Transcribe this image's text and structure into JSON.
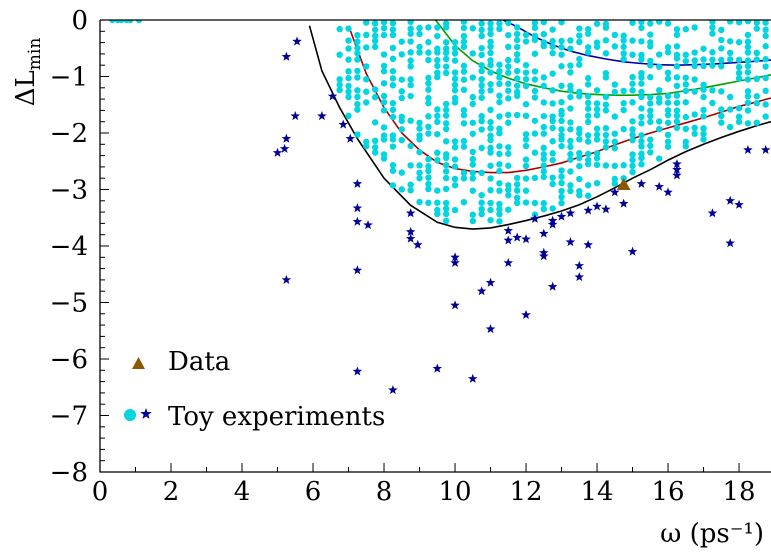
{
  "chart_data": {
    "type": "scatter",
    "title": "",
    "xlabel": "ω (ps⁻¹)",
    "ylabel": "ΔL_min",
    "ylabel_main": "ΔL",
    "ylabel_sub": "min",
    "xlim": [
      0,
      18.9
    ],
    "ylim": [
      -8,
      0
    ],
    "x_ticks": [
      0,
      2,
      4,
      6,
      8,
      10,
      12,
      14,
      16,
      18
    ],
    "x_tick_labels": [
      "0",
      "2",
      "4",
      "6",
      "8",
      "10",
      "12",
      "14",
      "16",
      "18"
    ],
    "y_ticks": [
      0,
      -1,
      -2,
      -3,
      -4,
      -5,
      -6,
      -7,
      -8
    ],
    "y_tick_labels": [
      "0",
      "−1",
      "−2",
      "−3",
      "−4",
      "−5",
      "−6",
      "−7",
      "−8"
    ],
    "grid": false,
    "legend_position": "bottom-left",
    "legend": [
      {
        "label": "Data",
        "marker": "triangle",
        "color": "#8b5a00"
      },
      {
        "label": "Toy experiments",
        "marker": "circle+star",
        "color": "#00d5e0"
      }
    ],
    "series": [
      {
        "name": "Data",
        "kind": "point",
        "color": "#8b5a00",
        "marker": "triangle",
        "points": [
          [
            14.75,
            -2.92
          ]
        ]
      },
      {
        "name": "Toy experiments (stars)",
        "kind": "scatter",
        "color": "#000099",
        "marker": "star",
        "points": [
          [
            5.0,
            -2.35
          ],
          [
            5.2,
            -2.28
          ],
          [
            5.25,
            -2.1
          ],
          [
            5.25,
            -0.65
          ],
          [
            5.55,
            -0.38
          ],
          [
            5.25,
            -4.6
          ],
          [
            5.5,
            -1.7
          ],
          [
            6.25,
            -1.7
          ],
          [
            6.55,
            -1.35
          ],
          [
            6.85,
            -1.85
          ],
          [
            7.05,
            -2.1
          ],
          [
            7.25,
            -2.9
          ],
          [
            7.25,
            -3.33
          ],
          [
            7.25,
            -3.57
          ],
          [
            7.55,
            -3.63
          ],
          [
            7.25,
            -4.43
          ],
          [
            7.25,
            -6.22
          ],
          [
            8.75,
            -3.42
          ],
          [
            8.75,
            -3.75
          ],
          [
            8.75,
            -3.87
          ],
          [
            8.95,
            -3.98
          ],
          [
            8.25,
            -6.55
          ],
          [
            9.5,
            -6.17
          ],
          [
            10.0,
            -4.2
          ],
          [
            10.0,
            -4.3
          ],
          [
            10.0,
            -5.05
          ],
          [
            10.5,
            -6.35
          ],
          [
            10.75,
            -4.8
          ],
          [
            11.0,
            -4.65
          ],
          [
            11.0,
            -5.47
          ],
          [
            11.5,
            -3.73
          ],
          [
            11.5,
            -3.9
          ],
          [
            11.75,
            -3.85
          ],
          [
            12.0,
            -3.88
          ],
          [
            11.5,
            -4.3
          ],
          [
            12.0,
            -5.22
          ],
          [
            12.25,
            -3.52
          ],
          [
            12.5,
            -3.78
          ],
          [
            12.5,
            -4.12
          ],
          [
            12.5,
            -4.18
          ],
          [
            12.75,
            -3.55
          ],
          [
            12.75,
            -3.62
          ],
          [
            12.75,
            -4.72
          ],
          [
            13.0,
            -3.48
          ],
          [
            13.25,
            -3.93
          ],
          [
            13.25,
            -3.42
          ],
          [
            13.5,
            -4.35
          ],
          [
            13.5,
            -4.55
          ],
          [
            13.75,
            -3.37
          ],
          [
            13.75,
            -3.98
          ],
          [
            14.0,
            -3.3
          ],
          [
            14.25,
            -3.35
          ],
          [
            14.75,
            -3.25
          ],
          [
            14.5,
            -3.05
          ],
          [
            15.25,
            -2.9
          ],
          [
            15.75,
            -2.95
          ],
          [
            16.25,
            -2.65
          ],
          [
            16.25,
            -2.75
          ],
          [
            16.25,
            -2.55
          ],
          [
            17.25,
            -3.42
          ],
          [
            17.75,
            -3.2
          ],
          [
            17.75,
            -3.95
          ],
          [
            18.0,
            -3.27
          ],
          [
            18.25,
            -2.3
          ],
          [
            18.75,
            -2.3
          ],
          [
            15.0,
            -4.1
          ],
          [
            16.0,
            -3.05
          ]
        ]
      },
      {
        "name": "Toy experiments (circles)",
        "kind": "scatter-band",
        "color": "#00d5e0",
        "marker": "circle",
        "edge_points": [
          [
            0.35,
            0
          ],
          [
            0.5,
            0
          ],
          [
            0.6,
            0
          ],
          [
            0.75,
            0
          ],
          [
            0.85,
            0
          ],
          [
            1.1,
            0
          ]
        ],
        "band": {
          "x_start": 6.75,
          "x_end": 18.9,
          "x_step": 0.25,
          "lower_bound": "black_curve",
          "upper": 0
        }
      }
    ],
    "curves": [
      {
        "name": "black",
        "color": "#000000",
        "points": [
          [
            5.9,
            -0.1
          ],
          [
            6.25,
            -0.9
          ],
          [
            6.75,
            -1.55
          ],
          [
            7.25,
            -2.1
          ],
          [
            8.0,
            -2.8
          ],
          [
            8.75,
            -3.28
          ],
          [
            9.5,
            -3.58
          ],
          [
            10.0,
            -3.67
          ],
          [
            10.5,
            -3.7
          ],
          [
            11.0,
            -3.68
          ],
          [
            11.5,
            -3.62
          ],
          [
            12.0,
            -3.55
          ],
          [
            12.5,
            -3.47
          ],
          [
            13.0,
            -3.38
          ],
          [
            13.5,
            -3.27
          ],
          [
            14.0,
            -3.13
          ],
          [
            14.5,
            -2.97
          ],
          [
            15.0,
            -2.8
          ],
          [
            15.5,
            -2.65
          ],
          [
            16.0,
            -2.48
          ],
          [
            16.5,
            -2.33
          ],
          [
            17.0,
            -2.2
          ],
          [
            17.5,
            -2.08
          ],
          [
            18.0,
            -1.97
          ],
          [
            18.5,
            -1.87
          ],
          [
            18.9,
            -1.8
          ]
        ]
      },
      {
        "name": "red",
        "color": "#aa0000",
        "points": [
          [
            7.0,
            -0.1
          ],
          [
            7.5,
            -0.95
          ],
          [
            8.0,
            -1.55
          ],
          [
            8.5,
            -2.0
          ],
          [
            9.0,
            -2.3
          ],
          [
            9.5,
            -2.52
          ],
          [
            10.0,
            -2.63
          ],
          [
            10.5,
            -2.68
          ],
          [
            11.0,
            -2.7
          ],
          [
            11.5,
            -2.7
          ],
          [
            12.0,
            -2.66
          ],
          [
            12.5,
            -2.6
          ],
          [
            13.0,
            -2.53
          ],
          [
            13.5,
            -2.43
          ],
          [
            14.0,
            -2.33
          ],
          [
            14.5,
            -2.21
          ],
          [
            15.0,
            -2.1
          ],
          [
            15.5,
            -2.0
          ],
          [
            16.0,
            -1.91
          ],
          [
            16.5,
            -1.82
          ],
          [
            17.0,
            -1.73
          ],
          [
            17.5,
            -1.63
          ],
          [
            18.0,
            -1.53
          ],
          [
            18.5,
            -1.45
          ],
          [
            18.9,
            -1.38
          ]
        ]
      },
      {
        "name": "green",
        "color": "#00a000",
        "points": [
          [
            9.45,
            0
          ],
          [
            10.0,
            -0.45
          ],
          [
            10.5,
            -0.72
          ],
          [
            11.0,
            -0.9
          ],
          [
            11.5,
            -1.03
          ],
          [
            12.0,
            -1.13
          ],
          [
            12.5,
            -1.2
          ],
          [
            13.0,
            -1.26
          ],
          [
            13.5,
            -1.3
          ],
          [
            14.0,
            -1.32
          ],
          [
            14.5,
            -1.33
          ],
          [
            15.0,
            -1.33
          ],
          [
            15.5,
            -1.32
          ],
          [
            16.0,
            -1.3
          ],
          [
            16.5,
            -1.25
          ],
          [
            17.0,
            -1.2
          ],
          [
            17.5,
            -1.14
          ],
          [
            18.0,
            -1.08
          ],
          [
            18.5,
            -1.02
          ],
          [
            18.9,
            -0.97
          ]
        ]
      },
      {
        "name": "blue",
        "color": "#0000aa",
        "points": [
          [
            11.35,
            0
          ],
          [
            11.75,
            -0.12
          ],
          [
            12.25,
            -0.3
          ],
          [
            12.75,
            -0.44
          ],
          [
            13.25,
            -0.55
          ],
          [
            13.75,
            -0.63
          ],
          [
            14.25,
            -0.69
          ],
          [
            14.75,
            -0.74
          ],
          [
            15.25,
            -0.77
          ],
          [
            15.75,
            -0.79
          ],
          [
            16.25,
            -0.8
          ],
          [
            16.75,
            -0.79
          ],
          [
            17.25,
            -0.78
          ],
          [
            17.75,
            -0.76
          ],
          [
            18.25,
            -0.74
          ],
          [
            18.9,
            -0.71
          ]
        ]
      }
    ]
  }
}
